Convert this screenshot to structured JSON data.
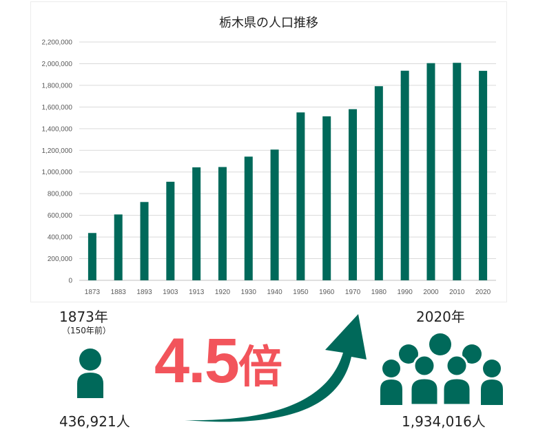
{
  "colors": {
    "bar": "#00695a",
    "accent": "#f2545b",
    "grid": "#d9d9d9"
  },
  "chart_data": {
    "type": "bar",
    "title": "栃木県の人口推移",
    "categories": [
      "1873",
      "1883",
      "1893",
      "1903",
      "1913",
      "1920",
      "1930",
      "1940",
      "1950",
      "1960",
      "1970",
      "1980",
      "1990",
      "2000",
      "2010",
      "2020"
    ],
    "values": [
      436921,
      608000,
      723000,
      910000,
      1043000,
      1046000,
      1142000,
      1207000,
      1550000,
      1514000,
      1580000,
      1792000,
      1935000,
      2005000,
      2008000,
      1934016
    ],
    "ylim": [
      0,
      2200000
    ],
    "yticks": [
      "0",
      "200,000",
      "400,000",
      "600,000",
      "800,000",
      "1,000,000",
      "1,200,000",
      "1,400,000",
      "1,600,000",
      "1,800,000",
      "2,000,000",
      "2,200,000"
    ],
    "grid": true,
    "xlabel": "",
    "ylabel": ""
  },
  "infographic": {
    "left": {
      "year": "1873年",
      "note": "（150年前）",
      "population": "436,921人",
      "icon": "single-person-icon"
    },
    "right": {
      "year": "2020年",
      "population": "1,934,016人",
      "icon": "crowd-icon"
    },
    "multiplier": {
      "number": "4.5",
      "unit": "倍"
    },
    "arrow_icon": "growth-arrow-icon"
  }
}
